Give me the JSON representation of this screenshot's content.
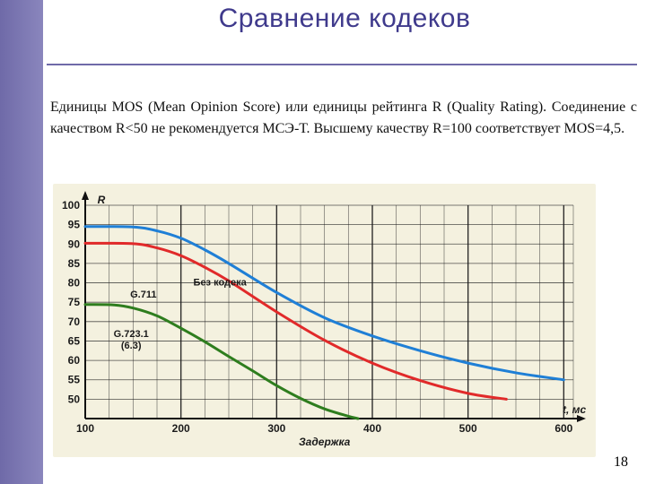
{
  "slide": {
    "title": "Сравнение кодеков",
    "description": "Единицы MOS (Mean Opinion Score) или единицы рейтинга R (Quality Rating). Соединение с качеством R<50 не рекомендуется МСЭ-Т. Высшему качеству R=100 соответствует MOS=4,5.",
    "page_number": "18"
  },
  "colors": {
    "sidebar": "#6f6aa8",
    "title": "#3f3a8c",
    "chart_background": "#f4f1df",
    "grid": "#1a1a1a"
  },
  "chart_data": {
    "type": "line",
    "ylabel": "R",
    "x_unit_label": "t, мс",
    "xlabel": "Задержка",
    "xlim": [
      100,
      610
    ],
    "ylim": [
      45,
      100
    ],
    "x_ticks": [
      100,
      200,
      300,
      400,
      500,
      600
    ],
    "y_ticks": [
      100,
      95,
      90,
      85,
      80,
      75,
      70,
      65,
      60,
      55,
      50
    ],
    "grid": true,
    "series": [
      {
        "name": "Без кодека",
        "color": "#1f7fd6",
        "x": [
          100,
          150,
          175,
          200,
          225,
          250,
          300,
          350,
          400,
          450,
          500,
          550,
          600
        ],
        "y": [
          94.5,
          94.4,
          93.4,
          91.5,
          88.5,
          85,
          77.5,
          71,
          66.3,
          62.5,
          59.3,
          56.8,
          55
        ]
      },
      {
        "name": "G.711",
        "color": "#e12a2a",
        "x": [
          100,
          150,
          175,
          200,
          225,
          250,
          300,
          350,
          400,
          450,
          500,
          540
        ],
        "y": [
          90.2,
          90.1,
          89,
          87,
          84,
          80.5,
          72.5,
          65.2,
          59.3,
          54.8,
          51.5,
          50
        ]
      },
      {
        "name": "G.723.1\n(6.3)",
        "color": "#2e7d1e",
        "x": [
          100,
          130,
          150,
          175,
          200,
          225,
          250,
          275,
          300,
          325,
          350,
          375,
          385
        ],
        "y": [
          74.4,
          74.3,
          73.5,
          71.5,
          68.3,
          64.8,
          61,
          57.3,
          53.5,
          50.2,
          47.5,
          45.6,
          45
        ]
      }
    ]
  }
}
